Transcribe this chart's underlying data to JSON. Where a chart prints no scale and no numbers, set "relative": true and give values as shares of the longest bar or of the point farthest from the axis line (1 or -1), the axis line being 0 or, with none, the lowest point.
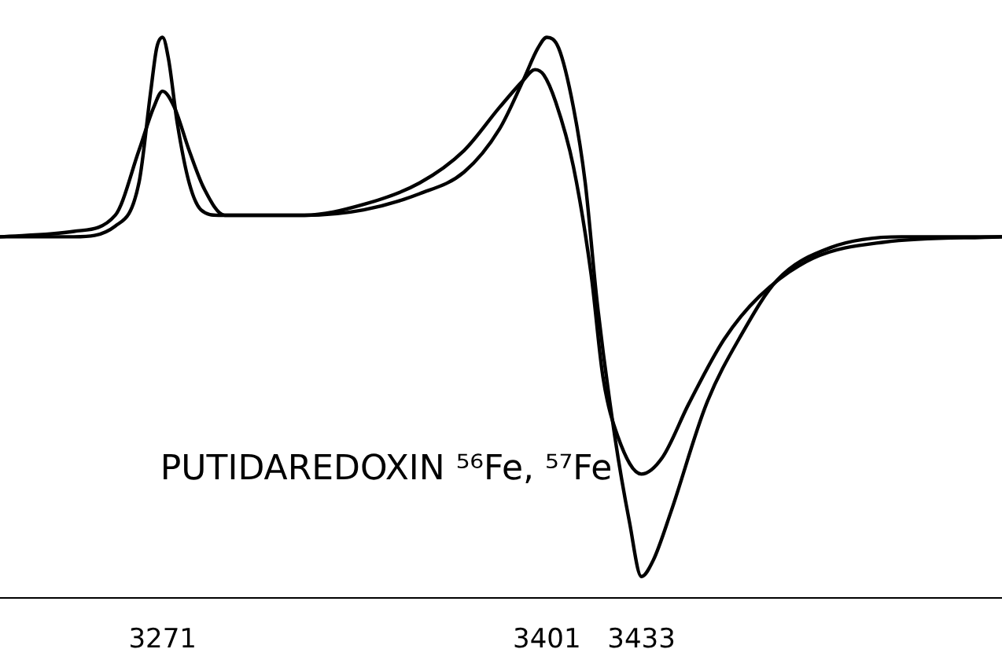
{
  "chart_data": {
    "type": "line",
    "relative": true,
    "annotations": [
      "PUTIDAREDOXIN ⁵⁶Fe, ⁵⁷Fe"
    ],
    "xlim": [
      3216,
      3555
    ],
    "xticks": [
      3271,
      3401,
      3433
    ],
    "legend": false,
    "marker": "none",
    "line_style": "solid",
    "series": [
      {
        "color": "#000000",
        "x": [
          3216,
          3241,
          3255,
          3263,
          3267,
          3269,
          3271,
          3273,
          3276,
          3280,
          3284,
          3290,
          3299,
          3319,
          3339,
          3358,
          3373,
          3385,
          3393,
          3398,
          3401,
          3405,
          3410,
          3414,
          3418,
          3424,
          3429,
          3433,
          3437,
          3443,
          3455,
          3467,
          3479,
          3497,
          3521,
          3555
        ],
        "values": [
          0.63,
          0.63,
          0.65,
          0.73,
          0.9,
          0.98,
          1.0,
          0.96,
          0.84,
          0.73,
          0.68,
          0.67,
          0.67,
          0.67,
          0.68,
          0.71,
          0.75,
          0.83,
          0.92,
          0.98,
          1.0,
          0.98,
          0.87,
          0.73,
          0.51,
          0.26,
          0.1,
          0,
          0.03,
          0.12,
          0.32,
          0.45,
          0.55,
          0.61,
          0.63,
          0.63
        ]
      },
      {
        "color": "#000000",
        "x": [
          3216,
          3241,
          3255,
          3263,
          3268,
          3271,
          3275,
          3280,
          3285,
          3292,
          3299,
          3319,
          3339,
          3358,
          3373,
          3385,
          3393,
          3397,
          3400,
          3404,
          3410,
          3416,
          3420,
          3425,
          3433,
          3440,
          3449,
          3461,
          3473,
          3491,
          3515,
          3555
        ],
        "values": [
          0.63,
          0.64,
          0.67,
          0.79,
          0.87,
          0.9,
          0.87,
          0.79,
          0.72,
          0.67,
          0.67,
          0.67,
          0.69,
          0.73,
          0.79,
          0.87,
          0.92,
          0.94,
          0.93,
          0.88,
          0.76,
          0.56,
          0.37,
          0.26,
          0.19,
          0.22,
          0.32,
          0.44,
          0.52,
          0.59,
          0.62,
          0.63
        ]
      }
    ]
  }
}
